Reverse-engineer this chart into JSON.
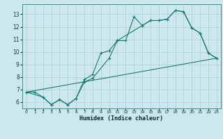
{
  "xlabel": "Humidex (Indice chaleur)",
  "bg_color": "#cce8ee",
  "grid_color": "#aacdd6",
  "line_color": "#1a7a6e",
  "xlim": [
    -0.5,
    23.5
  ],
  "ylim": [
    5.5,
    13.8
  ],
  "yticks": [
    6,
    7,
    8,
    9,
    10,
    11,
    12,
    13
  ],
  "xticks": [
    0,
    1,
    2,
    3,
    4,
    5,
    6,
    7,
    8,
    9,
    10,
    11,
    12,
    13,
    14,
    15,
    16,
    17,
    18,
    19,
    20,
    21,
    22,
    23
  ],
  "line1_x": [
    0,
    1,
    2,
    3,
    4,
    5,
    6,
    7,
    8,
    9,
    10,
    11,
    12,
    13,
    14,
    15,
    16,
    17,
    18,
    19,
    20,
    21,
    22,
    23
  ],
  "line1_y": [
    6.8,
    6.8,
    6.4,
    5.8,
    6.2,
    5.8,
    6.3,
    7.8,
    8.2,
    9.9,
    10.1,
    10.9,
    10.9,
    12.8,
    12.1,
    12.5,
    12.5,
    12.6,
    13.3,
    13.2,
    11.9,
    11.5,
    9.9,
    9.5
  ],
  "line2_x": [
    0,
    2,
    3,
    4,
    5,
    6,
    7,
    8,
    10,
    11,
    14,
    15,
    16,
    17,
    18,
    19,
    20,
    21,
    22,
    23
  ],
  "line2_y": [
    6.8,
    6.4,
    5.8,
    6.2,
    5.8,
    6.3,
    7.6,
    7.9,
    9.5,
    10.9,
    12.1,
    12.5,
    12.5,
    12.6,
    13.3,
    13.2,
    11.9,
    11.5,
    9.9,
    9.5
  ],
  "line3_x": [
    0,
    23
  ],
  "line3_y": [
    6.8,
    9.5
  ]
}
